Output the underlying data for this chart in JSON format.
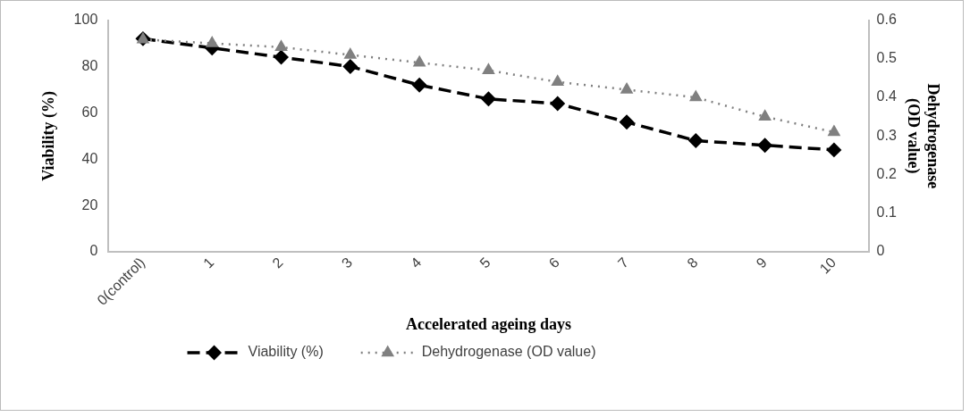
{
  "chart_data": {
    "type": "line",
    "xlabel": "Accelerated ageing days",
    "ylabel": "Viability (%)",
    "y2label": "Dehydrogenase\n(OD value)",
    "categories": [
      "0(control)",
      "1",
      "2",
      "3",
      "4",
      "5",
      "6",
      "7",
      "8",
      "9",
      "10"
    ],
    "series": [
      {
        "name": "Viability (%)",
        "color": "#000000",
        "marker": "diamond",
        "line_style": "dashed",
        "values": [
          92,
          88,
          84,
          80,
          72,
          66,
          64,
          56,
          48,
          46,
          44
        ]
      },
      {
        "name": "Dehydrogenase (OD value)",
        "color": "#808080",
        "marker": "triangle",
        "line_style": "dotted",
        "axis": "y2",
        "values": [
          0.55,
          0.54,
          0.53,
          0.51,
          0.49,
          0.47,
          0.44,
          0.42,
          0.4,
          0.35,
          0.31
        ]
      }
    ],
    "ylim": [
      0,
      100
    ],
    "yticks": [
      0,
      20,
      40,
      60,
      80,
      100
    ],
    "y2lim": [
      0,
      0.6
    ],
    "y2ticks": [
      0,
      0.1,
      0.2,
      0.3,
      0.4,
      0.5,
      0.6
    ],
    "grid": false,
    "legend": "bottom"
  }
}
